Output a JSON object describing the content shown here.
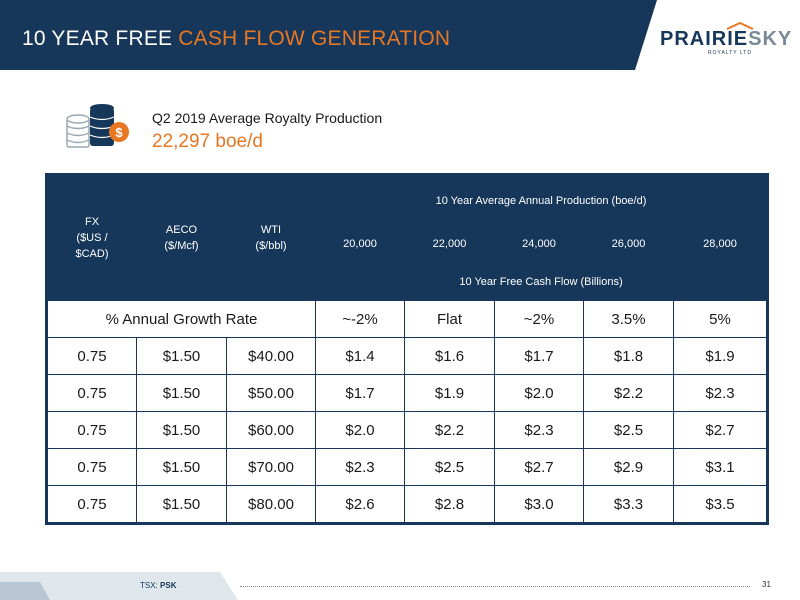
{
  "header": {
    "title_main": "10 YEAR FREE ",
    "title_accent": "CASH FLOW GENERATION",
    "logo_word1": "PRAIRIE",
    "logo_word2": "SKY",
    "logo_sub": "ROYALTY LTD"
  },
  "intro": {
    "icon": "coins-dollar-icon",
    "label": "Q2 2019 Average Royalty Production",
    "value": "22,297 boe/d"
  },
  "table": {
    "col_fx": "FX\n($US /\n$CAD)",
    "col_aeco": "AECO\n($/Mcf)",
    "col_wti": "WTI\n($/bbl)",
    "production_header": "10 Year Average Annual Production (boe/d)",
    "production_levels": [
      "20,000",
      "22,000",
      "24,000",
      "26,000",
      "28,000"
    ],
    "fcf_header": "10 Year Free Cash Flow (Billions)",
    "growth_label": "% Annual Growth Rate",
    "growth_rates": [
      "~-2%",
      "Flat",
      "~2%",
      "3.5%",
      "5%"
    ],
    "rows": [
      [
        "0.75",
        "$1.50",
        "$40.00",
        "$1.4",
        "$1.6",
        "$1.7",
        "$1.8",
        "$1.9"
      ],
      [
        "0.75",
        "$1.50",
        "$50.00",
        "$1.7",
        "$1.9",
        "$2.0",
        "$2.2",
        "$2.3"
      ],
      [
        "0.75",
        "$1.50",
        "$60.00",
        "$2.0",
        "$2.2",
        "$2.3",
        "$2.5",
        "$2.7"
      ],
      [
        "0.75",
        "$1.50",
        "$70.00",
        "$2.3",
        "$2.5",
        "$2.7",
        "$2.9",
        "$3.1"
      ],
      [
        "0.75",
        "$1.50",
        "$80.00",
        "$2.6",
        "$2.8",
        "$3.0",
        "$3.3",
        "$3.5"
      ]
    ]
  },
  "footer": {
    "ticker_label": "TSX:",
    "ticker": "PSK",
    "page_number": "31"
  },
  "colors": {
    "navy": "#16375a",
    "orange": "#e87722"
  }
}
